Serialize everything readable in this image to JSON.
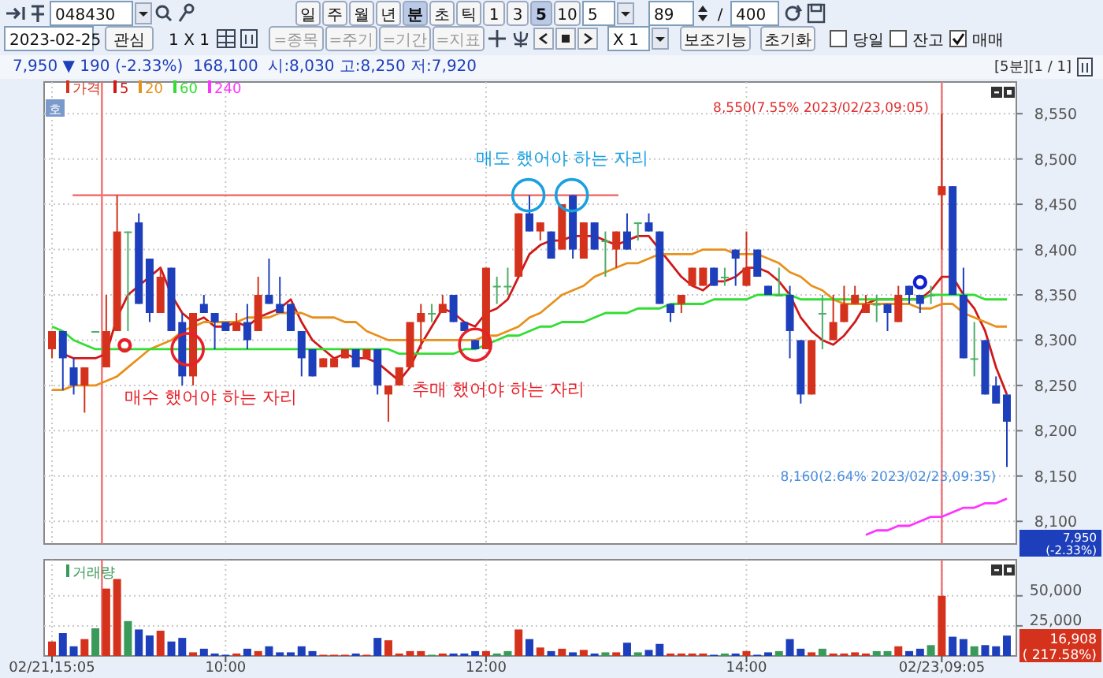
{
  "chart_data": [
    {
      "type": "other",
      "annotations": [
        "048430",
        "일",
        "주",
        "월",
        "년",
        "분",
        "초",
        "틱",
        "1",
        "3",
        "5",
        "10",
        "5",
        "89",
        "/",
        "400"
      ]
    },
    {
      "type": "other",
      "annotations": [
        "2023-02-25",
        "관심",
        "1 X 1",
        "=종목",
        "=주기",
        "=기간",
        "=지표",
        "X 1",
        "보조기능",
        "초기화",
        "당일",
        "잔고",
        "매매"
      ]
    },
    {
      "type": "candlestick",
      "subtitle": "7,950 ▼ 190 (-2.33%)  168,100  시:8,030 고:8,250 저:7,920",
      "categories": [
        null,
        null,
        null,
        null,
        null,
        null,
        null,
        null,
        null,
        null,
        null,
        null,
        null,
        null,
        null,
        null,
        null,
        null,
        null,
        null,
        null,
        null,
        null,
        null,
        null,
        null,
        null,
        null,
        null,
        null,
        null,
        null,
        null,
        null,
        null,
        null,
        null,
        null,
        null,
        null,
        null,
        null,
        null,
        null,
        null,
        null,
        null,
        null,
        null,
        null,
        null,
        null,
        null,
        null,
        null,
        null,
        null,
        null,
        null,
        null,
        null,
        null,
        null,
        null,
        null,
        null,
        null,
        null,
        null,
        null,
        null,
        null,
        null,
        null,
        null,
        null,
        null,
        null,
        null,
        null,
        null,
        null,
        null,
        null,
        null,
        null,
        null,
        null,
        null
      ],
      "series": [
        {
          "type": "candlestick",
          "name": "가격",
          "color": "#d4321c",
          "ohlc": [
            [
              8290,
              8310,
              8280,
              8310
            ],
            [
              8310,
              8310,
              8245,
              8280
            ],
            [
              8270,
              8280,
              8240,
              8250
            ],
            [
              8250,
              8270,
              8220,
              8270
            ],
            [
              8310,
              8310,
              8310,
              8310
            ],
            [
              8270,
              8350,
              8270,
              8310
            ],
            [
              8310,
              8460,
              8310,
              8420
            ],
            [
              8420,
              8420,
              8310,
              8420
            ],
            [
              8430,
              8440,
              8340,
              8340
            ],
            [
              8390,
              8390,
              8320,
              8330
            ],
            [
              8330,
              8380,
              8330,
              8370
            ],
            [
              8380,
              8380,
              8310,
              8310
            ],
            [
              8320,
              8330,
              8250,
              8260
            ],
            [
              8260,
              8330,
              8250,
              8330
            ],
            [
              8340,
              8350,
              8330,
              8330
            ],
            [
              8330,
              8330,
              8290,
              8320
            ],
            [
              8320,
              8320,
              8310,
              8310
            ],
            [
              8310,
              8330,
              8310,
              8320
            ],
            [
              8320,
              8340,
              8290,
              8300
            ],
            [
              8310,
              8370,
              8310,
              8350
            ],
            [
              8350,
              8390,
              8340,
              8340
            ],
            [
              8340,
              8370,
              8330,
              8330
            ],
            [
              8340,
              8340,
              8310,
              8310
            ],
            [
              8310,
              8310,
              8260,
              8280
            ],
            [
              8290,
              8290,
              8260,
              8260
            ],
            [
              8270,
              8280,
              8270,
              8280
            ],
            [
              8270,
              8280,
              8270,
              8280
            ],
            [
              8280,
              8290,
              8280,
              8290
            ],
            [
              8290,
              8290,
              8270,
              8270
            ],
            [
              8280,
              8290,
              8280,
              8290
            ],
            [
              8290,
              8290,
              8240,
              8250
            ],
            [
              8240,
              8250,
              8210,
              8250
            ],
            [
              8250,
              8270,
              8250,
              8270
            ],
            [
              8270,
              8320,
              8270,
              8320
            ],
            [
              8320,
              8340,
              8290,
              8330
            ],
            [
              8330,
              8340,
              8320,
              8330
            ],
            [
              8330,
              8350,
              8330,
              8340
            ],
            [
              8350,
              8350,
              8320,
              8320
            ],
            [
              8320,
              8320,
              8310,
              8310
            ],
            [
              8300,
              8300,
              8290,
              8290
            ],
            [
              8290,
              8380,
              8290,
              8380
            ],
            [
              8360,
              8370,
              8340,
              8360
            ],
            [
              8360,
              8380,
              8350,
              8360
            ],
            [
              8370,
              8440,
              8370,
              8440
            ],
            [
              8440,
              8460,
              8420,
              8420
            ],
            [
              8420,
              8430,
              8410,
              8430
            ],
            [
              8420,
              8420,
              8390,
              8390
            ],
            [
              8400,
              8450,
              8400,
              8450
            ],
            [
              8460,
              8460,
              8390,
              8400
            ],
            [
              8390,
              8430,
              8390,
              8430
            ],
            [
              8430,
              8430,
              8400,
              8400
            ],
            [
              8410,
              8420,
              8370,
              8410
            ],
            [
              8400,
              8420,
              8380,
              8420
            ],
            [
              8420,
              8440,
              8400,
              8400
            ],
            [
              8430,
              8430,
              8410,
              8430
            ],
            [
              8430,
              8440,
              8420,
              8420
            ],
            [
              8420,
              8420,
              8340,
              8340
            ],
            [
              8340,
              8340,
              8320,
              8330
            ],
            [
              8340,
              8350,
              8330,
              8350
            ],
            [
              8360,
              8380,
              8360,
              8380
            ],
            [
              8360,
              8380,
              8360,
              8380
            ],
            [
              8380,
              8380,
              8360,
              8360
            ],
            [
              8370,
              8380,
              8360,
              8370
            ],
            [
              8400,
              8400,
              8360,
              8390
            ],
            [
              8360,
              8420,
              8360,
              8380
            ],
            [
              8400,
              8400,
              8370,
              8370
            ],
            [
              8360,
              8360,
              8350,
              8350
            ],
            [
              8350,
              8380,
              8350,
              8350
            ],
            [
              8350,
              8360,
              8280,
              8310
            ],
            [
              8300,
              8300,
              8230,
              8240
            ],
            [
              8240,
              8300,
              8240,
              8300
            ],
            [
              8330,
              8350,
              8290,
              8330
            ],
            [
              8300,
              8350,
              8300,
              8320
            ],
            [
              8320,
              8360,
              8320,
              8340
            ],
            [
              8340,
              8360,
              8340,
              8350
            ],
            [
              8330,
              8350,
              8330,
              8340
            ],
            [
              8340,
              8350,
              8320,
              8340
            ],
            [
              8340,
              8340,
              8310,
              8330
            ],
            [
              8320,
              8360,
              8320,
              8350
            ],
            [
              8360,
              8360,
              8340,
              8350
            ],
            [
              8350,
              8350,
              8330,
              8340
            ],
            [
              8350,
              8360,
              8340,
              8350
            ],
            [
              8460,
              8550,
              8400,
              8470
            ],
            [
              8470,
              8470,
              8350,
              8350
            ],
            [
              8350,
              8380,
              8280,
              8280
            ],
            [
              8280,
              8320,
              8260,
              8280
            ],
            [
              8300,
              8300,
              8240,
              8240
            ],
            [
              8250,
              8260,
              8230,
              8230
            ],
            [
              8240,
              8240,
              8160,
              8210
            ]
          ],
          "colors": [
            "#d4321c",
            "#1d3fbb",
            "#1d3fbb",
            "#d4321c",
            "#4dae68",
            "#d4321c",
            "#d4321c",
            "#4dae68",
            "#1d3fbb",
            "#1d3fbb",
            "#d4321c",
            "#1d3fbb",
            "#1d3fbb",
            "#d4321c",
            "#1d3fbb",
            "#1d3fbb",
            "#1d3fbb",
            "#d4321c",
            "#1d3fbb",
            "#d4321c",
            "#1d3fbb",
            "#1d3fbb",
            "#1d3fbb",
            "#1d3fbb",
            "#1d3fbb",
            "#d4321c",
            "#d4321c",
            "#d4321c",
            "#1d3fbb",
            "#d4321c",
            "#1d3fbb",
            "#d4321c",
            "#d4321c",
            "#d4321c",
            "#d4321c",
            "#4dae68",
            "#d4321c",
            "#1d3fbb",
            "#1d3fbb",
            "#1d3fbb",
            "#d4321c",
            "#4dae68",
            "#4dae68",
            "#d4321c",
            "#1d3fbb",
            "#d4321c",
            "#1d3fbb",
            "#d4321c",
            "#1d3fbb",
            "#d4321c",
            "#1d3fbb",
            "#4dae68",
            "#d4321c",
            "#1d3fbb",
            "#4dae68",
            "#1d3fbb",
            "#1d3fbb",
            "#1d3fbb",
            "#d4321c",
            "#d4321c",
            "#d4321c",
            "#1d3fbb",
            "#4dae68",
            "#1d3fbb",
            "#d4321c",
            "#1d3fbb",
            "#1d3fbb",
            "#4dae68",
            "#1d3fbb",
            "#1d3fbb",
            "#d4321c",
            "#4dae68",
            "#d4321c",
            "#d4321c",
            "#d4321c",
            "#d4321c",
            "#4dae68",
            "#1d3fbb",
            "#d4321c",
            "#1d3fbb",
            "#1d3fbb",
            "#4dae68",
            "#d4321c",
            "#1d3fbb",
            "#1d3fbb",
            "#4dae68",
            "#1d3fbb",
            "#1d3fbb",
            "#1d3fbb"
          ]
        },
        {
          "type": "line",
          "name": "5",
          "color": "#d01818",
          "values": [
            null,
            8285,
            8280,
            8280,
            8280,
            8285,
            8325,
            8350,
            8360,
            8370,
            8380,
            8350,
            8330,
            8320,
            8325,
            8315,
            8315,
            8320,
            8315,
            8325,
            8330,
            8335,
            8345,
            8320,
            8300,
            8290,
            8280,
            8285,
            8280,
            8280,
            8275,
            8265,
            8255,
            8270,
            8295,
            8315,
            8335,
            8330,
            8320,
            8315,
            8330,
            8335,
            8345,
            8370,
            8395,
            8405,
            8410,
            8410,
            8415,
            8415,
            8415,
            8410,
            8405,
            8410,
            8415,
            8415,
            8400,
            8385,
            8370,
            8360,
            8355,
            8365,
            8365,
            8370,
            8380,
            8380,
            8375,
            8365,
            8350,
            8325,
            8310,
            8300,
            8295,
            8305,
            8320,
            8340,
            8345,
            8345,
            8345,
            8345,
            8345,
            8355,
            8370,
            8370,
            8350,
            8335,
            8310,
            8270,
            8240
          ]
        },
        {
          "type": "line",
          "name": "20",
          "color": "#e8901c",
          "values": [
            8245,
            8245,
            8250,
            8250,
            8250,
            8255,
            8260,
            8270,
            8280,
            8290,
            8295,
            8300,
            8310,
            8315,
            8320,
            8320,
            8320,
            8320,
            8325,
            8325,
            8325,
            8330,
            8330,
            8330,
            8325,
            8325,
            8325,
            8320,
            8320,
            8310,
            8305,
            8300,
            8300,
            8300,
            8300,
            8300,
            8300,
            8300,
            8300,
            8300,
            8305,
            8305,
            8310,
            8315,
            8325,
            8330,
            8340,
            8350,
            8355,
            8360,
            8370,
            8375,
            8380,
            8385,
            8385,
            8390,
            8395,
            8395,
            8395,
            8395,
            8400,
            8400,
            8400,
            8395,
            8395,
            8395,
            8390,
            8385,
            8375,
            8370,
            8360,
            8355,
            8345,
            8340,
            8340,
            8340,
            8340,
            8340,
            8340,
            8340,
            8335,
            8335,
            8340,
            8340,
            8330,
            8325,
            8320,
            8315,
            8315
          ]
        },
        {
          "type": "line",
          "name": "60",
          "color": "#33dd33",
          "values": [
            8315,
            8310,
            8300,
            8295,
            8290,
            8290,
            8290,
            8290,
            8290,
            8290,
            8290,
            8290,
            8290,
            8290,
            8290,
            8290,
            8290,
            8290,
            8290,
            8290,
            8290,
            8290,
            8290,
            8290,
            8290,
            8290,
            8290,
            8290,
            8290,
            8290,
            8290,
            8290,
            8285,
            8285,
            8285,
            8285,
            8285,
            8285,
            8290,
            8290,
            8295,
            8300,
            8305,
            8305,
            8310,
            8315,
            8315,
            8320,
            8320,
            8320,
            8325,
            8330,
            8330,
            8330,
            8335,
            8335,
            8335,
            8340,
            8340,
            8340,
            8340,
            8345,
            8345,
            8345,
            8345,
            8350,
            8350,
            8350,
            8350,
            8345,
            8345,
            8345,
            8345,
            8345,
            8345,
            8345,
            8345,
            8345,
            8345,
            8345,
            8345,
            8350,
            8350,
            8350,
            8350,
            8350,
            8345,
            8345,
            8345
          ]
        },
        {
          "type": "line",
          "name": "240",
          "color": "#ff33ff",
          "values": [
            null,
            null,
            null,
            null,
            null,
            null,
            null,
            null,
            null,
            null,
            null,
            null,
            null,
            null,
            null,
            null,
            null,
            null,
            null,
            null,
            null,
            null,
            null,
            null,
            null,
            null,
            null,
            null,
            null,
            null,
            null,
            null,
            null,
            null,
            null,
            null,
            null,
            null,
            null,
            null,
            null,
            null,
            null,
            null,
            null,
            null,
            null,
            null,
            null,
            null,
            null,
            null,
            null,
            null,
            null,
            null,
            null,
            null,
            null,
            null,
            null,
            null,
            null,
            null,
            null,
            null,
            null,
            null,
            null,
            null,
            null,
            null,
            null,
            null,
            null,
            8085,
            8090,
            8090,
            8095,
            8095,
            8100,
            8105,
            8105,
            8110,
            8115,
            8115,
            8120,
            8120,
            8125
          ]
        }
      ],
      "ylim": [
        8075,
        8585
      ],
      "yticks": [
        {
          "value": 8100,
          "label": "8,100"
        },
        {
          "value": 8150,
          "label": "8,150"
        },
        {
          "value": 8200,
          "label": "8,200"
        },
        {
          "value": 8250,
          "label": "8,250"
        },
        {
          "value": 8300,
          "label": "8,300"
        },
        {
          "value": 8350,
          "label": "8,350"
        },
        {
          "value": 8400,
          "label": "8,400"
        },
        {
          "value": 8450,
          "label": "8,450"
        },
        {
          "value": 8500,
          "label": "8,500"
        },
        {
          "value": 8550,
          "label": "8,550"
        }
      ],
      "tick_labels": "y",
      "grid": true,
      "legend": "top left",
      "ref_lines": [
        {
          "axis": "y",
          "value": 8460,
          "color": "#f06060"
        }
      ],
      "annotations": [
        {
          "text": "매수 했어야 하는 자리",
          "y": 8290
        },
        {
          "text": "추매 했어야 하는 자리",
          "y": 8295
        },
        {
          "text": "매도 했어야 하는 자리",
          "y": 8460
        },
        "8,550(7.55% 2023/02/23,09:05)",
        "8,160(2.64% 2023/02/23,09:35)",
        "7,950",
        "(-2.33%)",
        "호",
        "[5분][1 / 1]"
      ]
    },
    {
      "type": "bar",
      "categories": [
        "02/21,15:05",
        null,
        null,
        null,
        null,
        null,
        null,
        null,
        null,
        null,
        null,
        null,
        null,
        null,
        null,
        null,
        "10:00",
        null,
        null,
        null,
        null,
        null,
        null,
        null,
        null,
        null,
        null,
        null,
        null,
        null,
        null,
        null,
        null,
        null,
        null,
        null,
        null,
        null,
        null,
        null,
        "12:00",
        null,
        null,
        null,
        null,
        null,
        null,
        null,
        null,
        null,
        null,
        null,
        null,
        null,
        null,
        null,
        null,
        null,
        null,
        null,
        null,
        null,
        null,
        null,
        "14:00",
        null,
        null,
        null,
        null,
        null,
        null,
        null,
        null,
        null,
        null,
        null,
        null,
        null,
        null,
        null,
        null,
        null,
        "02/23,09:05",
        null,
        null,
        null,
        null,
        null,
        null
      ],
      "series": [
        {
          "name": "거래량",
          "color": "#3a9a5a",
          "values": [
            12000,
            19000,
            8000,
            14000,
            23000,
            56000,
            64000,
            29000,
            22000,
            17000,
            21000,
            12000,
            15000,
            3000,
            6000,
            2000,
            1000,
            2000,
            6000,
            4000,
            8000,
            3000,
            3000,
            8000,
            4000,
            1000,
            1000,
            1000,
            2000,
            1000,
            15000,
            13000,
            2000,
            4000,
            4000,
            1000,
            2000,
            2000,
            2000,
            4000,
            4000,
            2000,
            4000,
            22000,
            14000,
            7000,
            4000,
            6000,
            3000,
            5000,
            2000,
            3000,
            3000,
            11000,
            3000,
            5000,
            10000,
            2000,
            2000,
            2000,
            2000,
            1000,
            2000,
            2000,
            4000,
            1000,
            3000,
            4000,
            14000,
            6000,
            3000,
            6000,
            2000,
            2000,
            3000,
            2000,
            4000,
            4000,
            8000,
            4000,
            6000,
            9000,
            50000,
            16000,
            14000,
            8000,
            9000,
            8000,
            16908
          ],
          "colors": [
            "#d4321c",
            "#1d3fbb",
            "#1d3fbb",
            "#d4321c",
            "#3a9a5a",
            "#d4321c",
            "#d4321c",
            "#3a9a5a",
            "#1d3fbb",
            "#1d3fbb",
            "#d4321c",
            "#1d3fbb",
            "#1d3fbb",
            "#d4321c",
            "#1d3fbb",
            "#1d3fbb",
            "#1d3fbb",
            "#d4321c",
            "#1d3fbb",
            "#d4321c",
            "#1d3fbb",
            "#1d3fbb",
            "#1d3fbb",
            "#1d3fbb",
            "#1d3fbb",
            "#d4321c",
            "#d4321c",
            "#d4321c",
            "#1d3fbb",
            "#d4321c",
            "#1d3fbb",
            "#d4321c",
            "#d4321c",
            "#d4321c",
            "#d4321c",
            "#3a9a5a",
            "#d4321c",
            "#1d3fbb",
            "#1d3fbb",
            "#1d3fbb",
            "#d4321c",
            "#3a9a5a",
            "#3a9a5a",
            "#d4321c",
            "#1d3fbb",
            "#d4321c",
            "#1d3fbb",
            "#d4321c",
            "#1d3fbb",
            "#d4321c",
            "#1d3fbb",
            "#3a9a5a",
            "#d4321c",
            "#1d3fbb",
            "#3a9a5a",
            "#1d3fbb",
            "#1d3fbb",
            "#d4321c",
            "#d4321c",
            "#d4321c",
            "#d4321c",
            "#1d3fbb",
            "#3a9a5a",
            "#1d3fbb",
            "#d4321c",
            "#1d3fbb",
            "#1d3fbb",
            "#3a9a5a",
            "#1d3fbb",
            "#1d3fbb",
            "#d4321c",
            "#3a9a5a",
            "#d4321c",
            "#d4321c",
            "#d4321c",
            "#d4321c",
            "#3a9a5a",
            "#3a9a5a",
            "#d4321c",
            "#1d3fbb",
            "#1d3fbb",
            "#3a9a5a",
            "#d4321c",
            "#1d3fbb",
            "#1d3fbb",
            "#3a9a5a",
            "#1d3fbb",
            "#1d3fbb",
            "#1d3fbb"
          ]
        }
      ],
      "ylim": [
        0,
        80000
      ],
      "yticks": [
        {
          "value": 25000,
          "label": "25,000"
        },
        {
          "value": 50000,
          "label": "50,000"
        }
      ],
      "grid": true,
      "legend": "top left",
      "annotations": [
        "16,908",
        "( 217.58%)"
      ]
    }
  ]
}
